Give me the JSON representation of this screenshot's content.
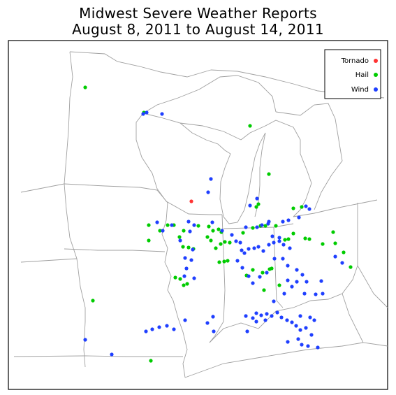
{
  "title_line1": "Midwest Severe Weather Reports",
  "title_line2": "August 8, 2011 to August 14, 2011",
  "legend": [
    {
      "label": "Tornado",
      "color": "#ff3333"
    },
    {
      "label": "Hail",
      "color": "#00cc00"
    },
    {
      "label": "Wind",
      "color": "#1f3fff"
    }
  ],
  "reports": {
    "tornado": [
      [
        274,
        288
      ]
    ],
    "hail": [
      [
        122,
        125
      ],
      [
        206,
        161
      ],
      [
        358,
        180
      ],
      [
        370,
        292
      ],
      [
        367,
        296
      ],
      [
        385,
        249
      ],
      [
        420,
        298
      ],
      [
        432,
        296
      ],
      [
        213,
        322
      ],
      [
        213,
        344
      ],
      [
        229,
        330
      ],
      [
        240,
        322
      ],
      [
        249,
        322
      ],
      [
        263,
        330
      ],
      [
        257,
        339
      ],
      [
        262,
        353
      ],
      [
        270,
        354
      ],
      [
        277,
        356
      ],
      [
        284,
        323
      ],
      [
        299,
        324
      ],
      [
        305,
        330
      ],
      [
        313,
        328
      ],
      [
        317,
        332
      ],
      [
        297,
        339
      ],
      [
        302,
        344
      ],
      [
        309,
        355
      ],
      [
        316,
        349
      ],
      [
        322,
        346
      ],
      [
        329,
        347
      ],
      [
        314,
        375
      ],
      [
        321,
        374
      ],
      [
        326,
        373
      ],
      [
        251,
        397
      ],
      [
        258,
        399
      ],
      [
        263,
        408
      ],
      [
        268,
        406
      ],
      [
        348,
        333
      ],
      [
        362,
        326
      ],
      [
        373,
        323
      ],
      [
        380,
        323
      ],
      [
        395,
        323
      ],
      [
        408,
        343
      ],
      [
        413,
        342
      ],
      [
        420,
        334
      ],
      [
        437,
        341
      ],
      [
        443,
        342
      ],
      [
        462,
        349
      ],
      [
        477,
        332
      ],
      [
        480,
        348
      ],
      [
        492,
        361
      ],
      [
        502,
        382
      ],
      [
        353,
        394
      ],
      [
        362,
        386
      ],
      [
        376,
        390
      ],
      [
        378,
        415
      ],
      [
        389,
        384
      ],
      [
        400,
        408
      ],
      [
        133,
        430
      ],
      [
        216,
        516
      ],
      [
        386,
        385
      ]
    ],
    "wind": [
      [
        205,
        163
      ],
      [
        210,
        161
      ],
      [
        232,
        163
      ],
      [
        298,
        275
      ],
      [
        302,
        256
      ],
      [
        278,
        322
      ],
      [
        225,
        318
      ],
      [
        233,
        330
      ],
      [
        246,
        322
      ],
      [
        270,
        317
      ],
      [
        272,
        331
      ],
      [
        358,
        294
      ],
      [
        352,
        325
      ],
      [
        368,
        325
      ],
      [
        368,
        284
      ],
      [
        375,
        322
      ],
      [
        384,
        320
      ],
      [
        385,
        317
      ],
      [
        400,
        340
      ],
      [
        405,
        317
      ],
      [
        413,
        315
      ],
      [
        428,
        311
      ],
      [
        438,
        295
      ],
      [
        443,
        299
      ],
      [
        258,
        344
      ],
      [
        276,
        357
      ],
      [
        265,
        369
      ],
      [
        274,
        372
      ],
      [
        267,
        384
      ],
      [
        264,
        395
      ],
      [
        278,
        398
      ],
      [
        304,
        318
      ],
      [
        318,
        330
      ],
      [
        332,
        336
      ],
      [
        338,
        345
      ],
      [
        344,
        347
      ],
      [
        346,
        358
      ],
      [
        350,
        362
      ],
      [
        356,
        356
      ],
      [
        364,
        355
      ],
      [
        370,
        353
      ],
      [
        377,
        359
      ],
      [
        385,
        350
      ],
      [
        392,
        347
      ],
      [
        390,
        338
      ],
      [
        400,
        345
      ],
      [
        406,
        350
      ],
      [
        415,
        355
      ],
      [
        340,
        373
      ],
      [
        347,
        383
      ],
      [
        356,
        395
      ],
      [
        362,
        405
      ],
      [
        372,
        396
      ],
      [
        382,
        390
      ],
      [
        393,
        370
      ],
      [
        405,
        370
      ],
      [
        412,
        380
      ],
      [
        425,
        386
      ],
      [
        433,
        393
      ],
      [
        439,
        403
      ],
      [
        460,
        402
      ],
      [
        480,
        367
      ],
      [
        490,
        376
      ],
      [
        412,
        401
      ],
      [
        418,
        410
      ],
      [
        425,
        403
      ],
      [
        352,
        452
      ],
      [
        362,
        455
      ],
      [
        367,
        448
      ],
      [
        374,
        451
      ],
      [
        382,
        449
      ],
      [
        389,
        452
      ],
      [
        397,
        447
      ],
      [
        403,
        454
      ],
      [
        411,
        458
      ],
      [
        418,
        461
      ],
      [
        424,
        466
      ],
      [
        430,
        472
      ],
      [
        438,
        469
      ],
      [
        446,
        479
      ],
      [
        455,
        497
      ],
      [
        427,
        485
      ],
      [
        432,
        493
      ],
      [
        441,
        495
      ],
      [
        412,
        489
      ],
      [
        354,
        474
      ],
      [
        305,
        453
      ],
      [
        297,
        462
      ],
      [
        306,
        474
      ],
      [
        209,
        474
      ],
      [
        218,
        471
      ],
      [
        228,
        468
      ],
      [
        239,
        466
      ],
      [
        249,
        471
      ],
      [
        265,
        458
      ],
      [
        122,
        486
      ],
      [
        160,
        507
      ],
      [
        430,
        452
      ],
      [
        444,
        454
      ],
      [
        450,
        458
      ],
      [
        380,
        458
      ],
      [
        367,
        460
      ],
      [
        392,
        431
      ],
      [
        407,
        420
      ],
      [
        436,
        420
      ],
      [
        452,
        421
      ],
      [
        462,
        420
      ]
    ]
  }
}
